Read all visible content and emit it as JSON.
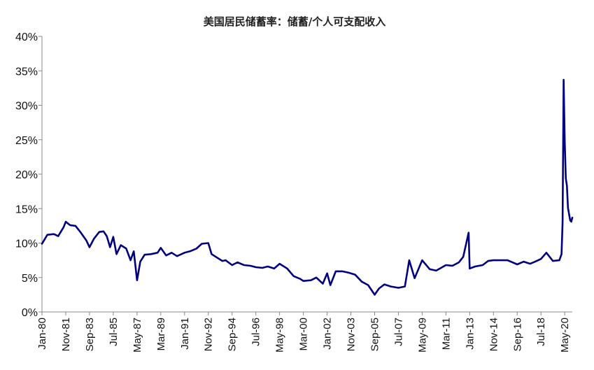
{
  "chart_data": {
    "type": "line",
    "title": "美国居民储蓄率：储蓄/个人可支配收入",
    "xlabel": "",
    "ylabel": "",
    "ylim": [
      0,
      40
    ],
    "xlim": [
      "1980-01",
      "2020-12"
    ],
    "yticks": [
      "0%",
      "5%",
      "10%",
      "15%",
      "20%",
      "25%",
      "30%",
      "35%",
      "40%"
    ],
    "xticks": [
      {
        "label": "Jan-80",
        "date": "1980-01"
      },
      {
        "label": "Nov-81",
        "date": "1981-11"
      },
      {
        "label": "Sep-83",
        "date": "1983-09"
      },
      {
        "label": "Jul-85",
        "date": "1985-07"
      },
      {
        "label": "May-87",
        "date": "1987-05"
      },
      {
        "label": "Mar-89",
        "date": "1989-03"
      },
      {
        "label": "Jan-91",
        "date": "1991-01"
      },
      {
        "label": "Nov-92",
        "date": "1992-11"
      },
      {
        "label": "Sep-94",
        "date": "1994-09"
      },
      {
        "label": "Jul-96",
        "date": "1996-07"
      },
      {
        "label": "May-98",
        "date": "1998-05"
      },
      {
        "label": "Mar-00",
        "date": "2000-03"
      },
      {
        "label": "Jan-02",
        "date": "2002-01"
      },
      {
        "label": "Nov-03",
        "date": "2003-11"
      },
      {
        "label": "Sep-05",
        "date": "2005-09"
      },
      {
        "label": "Jul-07",
        "date": "2007-07"
      },
      {
        "label": "May-09",
        "date": "2009-05"
      },
      {
        "label": "Mar-11",
        "date": "2011-03"
      },
      {
        "label": "Jan-13",
        "date": "2013-01"
      },
      {
        "label": "Nov-14",
        "date": "2014-11"
      },
      {
        "label": "Sep-16",
        "date": "2016-09"
      },
      {
        "label": "Jul-18",
        "date": "2018-07"
      },
      {
        "label": "May-20",
        "date": "2020-05"
      }
    ],
    "grid": false,
    "legend": "none",
    "series": [
      {
        "color": "#000080",
        "points": [
          [
            "1980-01",
            9.9
          ],
          [
            "1980-06",
            11.2
          ],
          [
            "1980-12",
            11.3
          ],
          [
            "1981-04",
            11.0
          ],
          [
            "1981-09",
            12.3
          ],
          [
            "1981-11",
            13.1
          ],
          [
            "1982-03",
            12.6
          ],
          [
            "1982-08",
            12.5
          ],
          [
            "1983-01",
            11.5
          ],
          [
            "1983-06",
            10.4
          ],
          [
            "1983-09",
            9.4
          ],
          [
            "1984-01",
            10.6
          ],
          [
            "1984-06",
            11.6
          ],
          [
            "1984-10",
            11.7
          ],
          [
            "1985-01",
            11.0
          ],
          [
            "1985-04",
            9.4
          ],
          [
            "1985-07",
            10.9
          ],
          [
            "1985-10",
            8.4
          ],
          [
            "1986-02",
            9.7
          ],
          [
            "1986-07",
            9.2
          ],
          [
            "1986-11",
            7.5
          ],
          [
            "1987-02",
            8.8
          ],
          [
            "1987-05",
            4.6
          ],
          [
            "1987-08",
            7.3
          ],
          [
            "1987-12",
            8.3
          ],
          [
            "1988-06",
            8.4
          ],
          [
            "1988-12",
            8.6
          ],
          [
            "1989-03",
            9.3
          ],
          [
            "1989-08",
            8.2
          ],
          [
            "1990-01",
            8.6
          ],
          [
            "1990-06",
            8.1
          ],
          [
            "1991-01",
            8.6
          ],
          [
            "1991-06",
            8.8
          ],
          [
            "1991-12",
            9.2
          ],
          [
            "1992-05",
            9.9
          ],
          [
            "1992-11",
            10.0
          ],
          [
            "1993-02",
            8.4
          ],
          [
            "1993-06",
            8.0
          ],
          [
            "1993-12",
            7.4
          ],
          [
            "1994-03",
            7.5
          ],
          [
            "1994-09",
            6.8
          ],
          [
            "1995-02",
            7.2
          ],
          [
            "1995-08",
            6.8
          ],
          [
            "1996-02",
            6.7
          ],
          [
            "1996-07",
            6.5
          ],
          [
            "1997-01",
            6.4
          ],
          [
            "1997-06",
            6.6
          ],
          [
            "1997-12",
            6.3
          ],
          [
            "1998-05",
            7.0
          ],
          [
            "1998-12",
            6.3
          ],
          [
            "1999-06",
            5.2
          ],
          [
            "1999-12",
            4.8
          ],
          [
            "2000-03",
            4.5
          ],
          [
            "2000-10",
            4.6
          ],
          [
            "2001-03",
            5.0
          ],
          [
            "2001-09",
            4.1
          ],
          [
            "2002-01",
            5.6
          ],
          [
            "2002-04",
            3.9
          ],
          [
            "2002-09",
            5.9
          ],
          [
            "2003-03",
            5.9
          ],
          [
            "2003-09",
            5.7
          ],
          [
            "2004-03",
            5.4
          ],
          [
            "2004-09",
            4.4
          ],
          [
            "2005-03",
            3.9
          ],
          [
            "2005-09",
            2.5
          ],
          [
            "2006-01",
            3.4
          ],
          [
            "2006-06",
            4.0
          ],
          [
            "2006-12",
            3.7
          ],
          [
            "2007-07",
            3.5
          ],
          [
            "2008-01",
            3.7
          ],
          [
            "2008-05",
            7.5
          ],
          [
            "2008-10",
            4.9
          ],
          [
            "2009-05",
            7.5
          ],
          [
            "2009-12",
            6.2
          ],
          [
            "2010-06",
            6.0
          ],
          [
            "2011-03",
            6.8
          ],
          [
            "2011-09",
            6.7
          ],
          [
            "2012-03",
            7.2
          ],
          [
            "2012-07",
            8.0
          ],
          [
            "2012-12",
            11.5
          ],
          [
            "2013-01",
            6.3
          ],
          [
            "2013-06",
            6.6
          ],
          [
            "2014-01",
            6.8
          ],
          [
            "2014-06",
            7.4
          ],
          [
            "2014-11",
            7.5
          ],
          [
            "2015-06",
            7.5
          ],
          [
            "2015-12",
            7.5
          ],
          [
            "2016-09",
            6.9
          ],
          [
            "2017-03",
            7.3
          ],
          [
            "2017-09",
            7.0
          ],
          [
            "2018-03",
            7.4
          ],
          [
            "2018-07",
            7.7
          ],
          [
            "2018-12",
            8.6
          ],
          [
            "2019-06",
            7.4
          ],
          [
            "2019-12",
            7.5
          ],
          [
            "2020-02",
            8.4
          ],
          [
            "2020-03",
            13.0
          ],
          [
            "2020-04",
            33.7
          ],
          [
            "2020-05",
            24.6
          ],
          [
            "2020-06",
            19.4
          ],
          [
            "2020-07",
            18.3
          ],
          [
            "2020-08",
            15.1
          ],
          [
            "2020-09",
            14.2
          ],
          [
            "2020-10",
            13.3
          ],
          [
            "2020-11",
            13.1
          ],
          [
            "2020-12",
            13.7
          ]
        ]
      }
    ]
  }
}
